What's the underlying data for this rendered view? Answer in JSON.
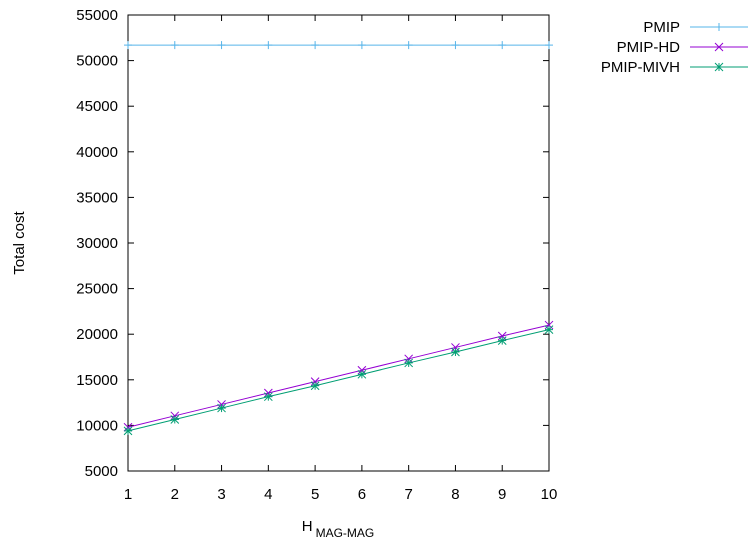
{
  "chart_data": {
    "type": "line",
    "xlabel": "H",
    "xlabel_subscript": "MAG-MAG",
    "ylabel": "Total cost",
    "xlim": [
      1,
      10
    ],
    "ylim": [
      5000,
      55000
    ],
    "x_ticks": [
      1,
      2,
      3,
      4,
      5,
      6,
      7,
      8,
      9,
      10
    ],
    "y_ticks": [
      5000,
      10000,
      15000,
      20000,
      25000,
      30000,
      35000,
      40000,
      45000,
      50000,
      55000
    ],
    "grid": false,
    "legend_position": "outside-top-right",
    "x": [
      1,
      2,
      3,
      4,
      5,
      6,
      7,
      8,
      9,
      10
    ],
    "series": [
      {
        "name": "PMIP",
        "color": "#56b4e9",
        "marker": "plus",
        "values": [
          51700,
          51700,
          51700,
          51700,
          51700,
          51700,
          51700,
          51700,
          51700,
          51700
        ]
      },
      {
        "name": "PMIP-HD",
        "color": "#9400d3",
        "marker": "cross",
        "values": [
          9800,
          11050,
          12300,
          13550,
          14800,
          16050,
          17300,
          18550,
          19800,
          21000
        ]
      },
      {
        "name": "PMIP-MIVH",
        "color": "#009e73",
        "marker": "star",
        "values": [
          9400,
          10650,
          11900,
          13150,
          14350,
          15600,
          16850,
          18050,
          19300,
          20500
        ]
      }
    ]
  }
}
